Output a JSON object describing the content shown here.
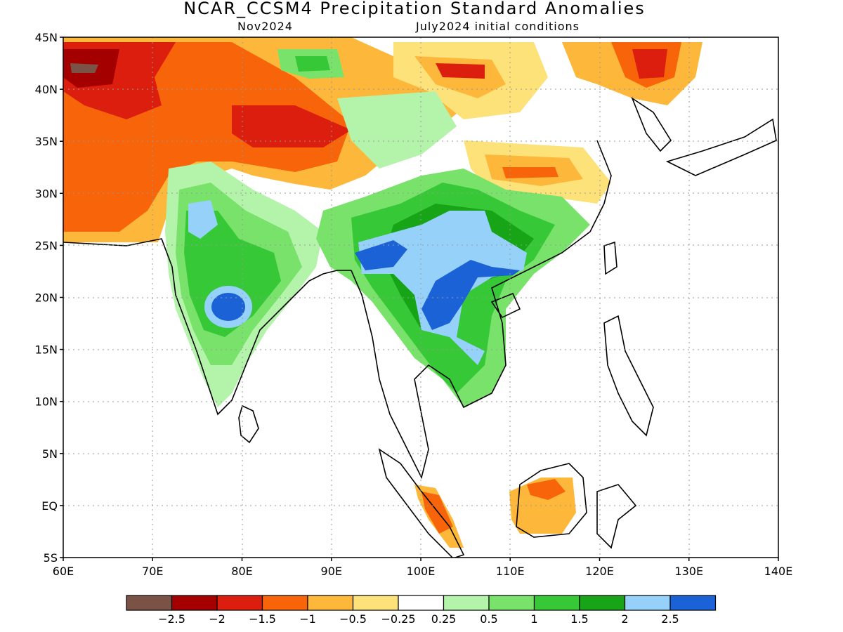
{
  "title": "NCAR_CCSM4 Precipitation Standard Anomalies",
  "subtitle_left": "Nov2024",
  "subtitle_right": "July2024 initial conditions",
  "map": {
    "lon_range": [
      60,
      140
    ],
    "lat_range": [
      -5,
      45
    ],
    "lon_ticks": [
      "60E",
      "70E",
      "80E",
      "90E",
      "100E",
      "110E",
      "120E",
      "130E",
      "140E"
    ],
    "lat_ticks": [
      "45N",
      "40N",
      "35N",
      "30N",
      "25N",
      "20N",
      "15N",
      "10N",
      "5N",
      "EQ",
      "5S"
    ],
    "gridlines": "dotted"
  },
  "colorbar": {
    "colors": [
      "#7b5246",
      "#a50000",
      "#dc1e0e",
      "#f8640a",
      "#fdb83c",
      "#fde27a",
      "#ffffff",
      "#b4f4aa",
      "#78e26a",
      "#37c837",
      "#17a417",
      "#96d1fa",
      "#1b62d6"
    ],
    "labels": [
      "−2.5",
      "−2",
      "−1.5",
      "−1",
      "−0.5",
      "−0.25",
      "0.25",
      "0.5",
      "1",
      "1.5",
      "2",
      "2.5"
    ]
  }
}
